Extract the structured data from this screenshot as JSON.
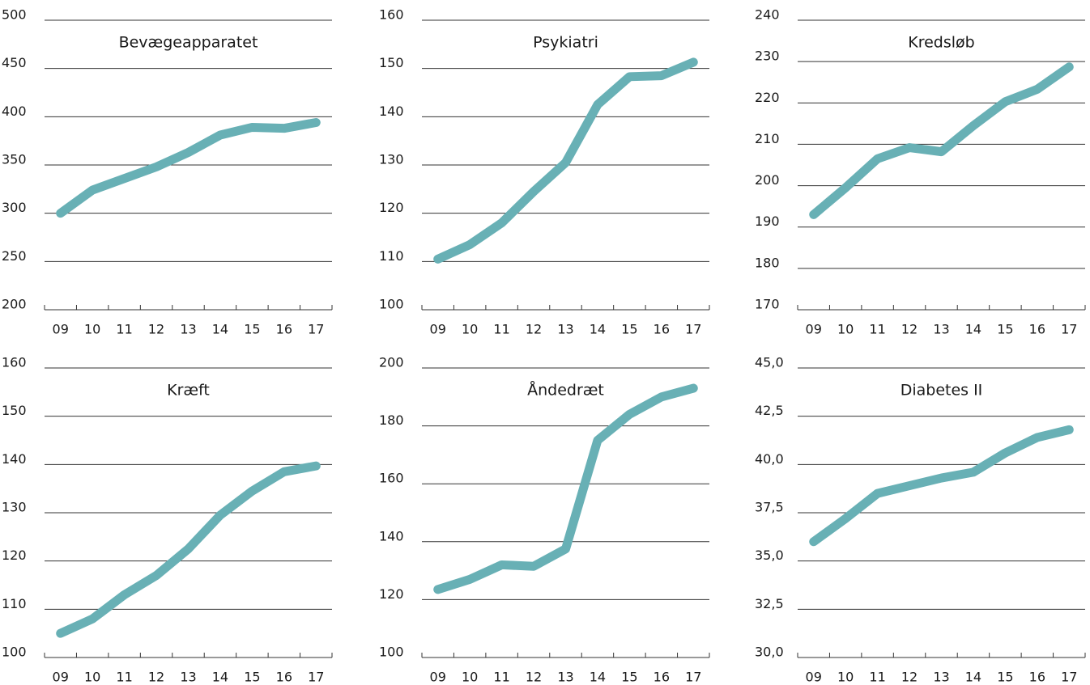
{
  "chart_data": [
    {
      "type": "line",
      "title": "Bevægeapparatet",
      "categories": [
        "09",
        "10",
        "11",
        "12",
        "13",
        "14",
        "15",
        "16",
        "17"
      ],
      "series": [
        {
          "color": "#68b0b5",
          "values": [
            300,
            324,
            336,
            348,
            363,
            381,
            389,
            388,
            394
          ]
        }
      ],
      "ylim": [
        200,
        500
      ],
      "yticks": [
        200,
        250,
        300,
        350,
        400,
        450,
        500
      ],
      "grid": true
    },
    {
      "type": "line",
      "title": "Psykiatri",
      "categories": [
        "09",
        "10",
        "11",
        "12",
        "13",
        "14",
        "15",
        "16",
        "17"
      ],
      "series": [
        {
          "color": "#68b0b5",
          "values": [
            110.5,
            113.5,
            118,
            124.5,
            130.5,
            142.5,
            148.3,
            148.5,
            151.3
          ]
        }
      ],
      "ylim": [
        100,
        160
      ],
      "yticks": [
        100,
        110,
        120,
        130,
        140,
        150,
        160
      ],
      "grid": true
    },
    {
      "type": "line",
      "title": "Kredsløb",
      "categories": [
        "09",
        "10",
        "11",
        "12",
        "13",
        "14",
        "15",
        "16",
        "17"
      ],
      "series": [
        {
          "color": "#68b0b5",
          "values": [
            193,
            199.5,
            206.5,
            209.2,
            208.2,
            214.5,
            220.3,
            223.3,
            228.7
          ]
        }
      ],
      "ylim": [
        170,
        240
      ],
      "yticks": [
        170,
        180,
        190,
        200,
        210,
        220,
        230,
        240
      ],
      "grid": true
    },
    {
      "type": "line",
      "title": "Kræft",
      "categories": [
        "09",
        "10",
        "11",
        "12",
        "13",
        "14",
        "15",
        "16",
        "17"
      ],
      "series": [
        {
          "color": "#68b0b5",
          "values": [
            105,
            108,
            113,
            117,
            122.5,
            129.5,
            134.5,
            138.5,
            139.7
          ]
        }
      ],
      "ylim": [
        100,
        160
      ],
      "yticks": [
        100,
        110,
        120,
        130,
        140,
        150,
        160
      ],
      "grid": true
    },
    {
      "type": "line",
      "title": "Åndedræt",
      "categories": [
        "09",
        "10",
        "11",
        "12",
        "13",
        "14",
        "15",
        "16",
        "17"
      ],
      "series": [
        {
          "color": "#68b0b5",
          "values": [
            123.5,
            127,
            132,
            131.5,
            137.5,
            175,
            184,
            190,
            193
          ]
        }
      ],
      "ylim": [
        100,
        200
      ],
      "yticks": [
        100,
        120,
        140,
        160,
        180,
        200
      ],
      "grid": true
    },
    {
      "type": "line",
      "title": "Diabetes II",
      "categories": [
        "09",
        "10",
        "11",
        "12",
        "13",
        "14",
        "15",
        "16",
        "17"
      ],
      "series": [
        {
          "color": "#68b0b5",
          "values": [
            36,
            37.2,
            38.5,
            38.9,
            39.3,
            39.6,
            40.6,
            41.4,
            41.8
          ]
        }
      ],
      "ylim": [
        30,
        45
      ],
      "yticks": [
        {
          "value": 30,
          "label": "30,0"
        },
        {
          "value": 32.5,
          "label": "32,5"
        },
        {
          "value": 35,
          "label": "35,0"
        },
        {
          "value": 37.5,
          "label": "37,5"
        },
        {
          "value": 40,
          "label": "40,0"
        },
        {
          "value": 42.5,
          "label": "42,5"
        },
        {
          "value": 45,
          "label": "45,0"
        }
      ],
      "grid": true
    }
  ]
}
